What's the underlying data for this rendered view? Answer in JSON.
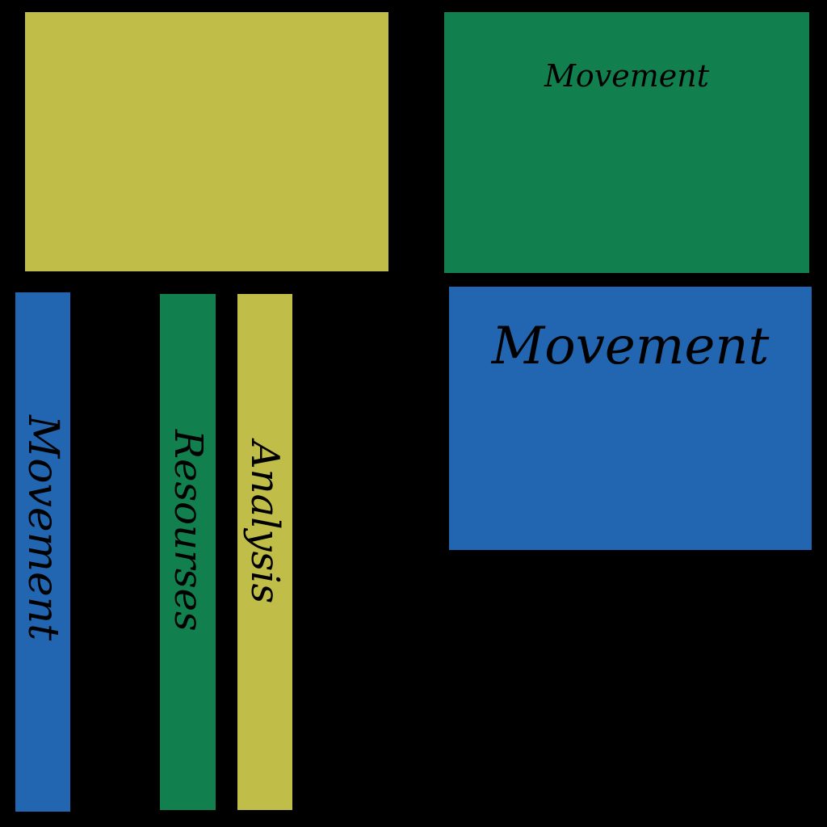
{
  "colors": {
    "background": "#000000",
    "olive": "#c0bd48",
    "green": "#12804e",
    "blue": "#2266b1",
    "text": "#000000"
  },
  "panels": {
    "top_right_label": "Movement",
    "right_label": "Movement"
  },
  "strips": [
    {
      "label": "Movement"
    },
    {
      "label": "Resourses"
    },
    {
      "label": "Analysis"
    }
  ]
}
